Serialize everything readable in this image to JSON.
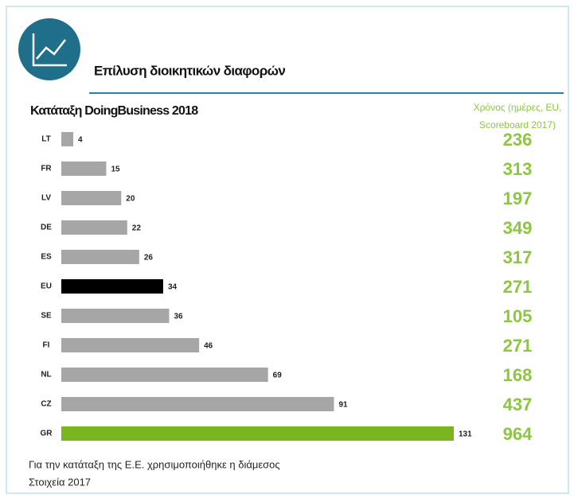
{
  "chart_data": {
    "type": "bar",
    "orientation": "horizontal",
    "title": "Επίλυση διοικητικών διαφορών",
    "subtitle": "Κατάταξη DoingBusiness 2018",
    "categories": [
      "LT",
      "FR",
      "LV",
      "DE",
      "ES",
      "EU",
      "SE",
      "FI",
      "NL",
      "CZ",
      "GR"
    ],
    "values": [
      4,
      15,
      20,
      22,
      26,
      34,
      36,
      46,
      69,
      91,
      131
    ],
    "colors": [
      "#a6a6a6",
      "#a6a6a6",
      "#a6a6a6",
      "#a6a6a6",
      "#a6a6a6",
      "#000000",
      "#a6a6a6",
      "#a6a6a6",
      "#a6a6a6",
      "#a6a6a6",
      "#7ab51d"
    ],
    "side_column": {
      "title": [
        "Χρόνος (ημέρες, EU,",
        "Scoreboard 2017)"
      ],
      "values": [
        "236",
        "313",
        "197",
        "349",
        "317",
        "271",
        "105",
        "271",
        "168",
        "437",
        "964"
      ],
      "color": "#8dc63f"
    },
    "notes": [
      "Για την κατάταξη της Ε.Ε. χρησιμοποιήθηκε η διάμεσος",
      "Στοιχεία 2017"
    ]
  }
}
